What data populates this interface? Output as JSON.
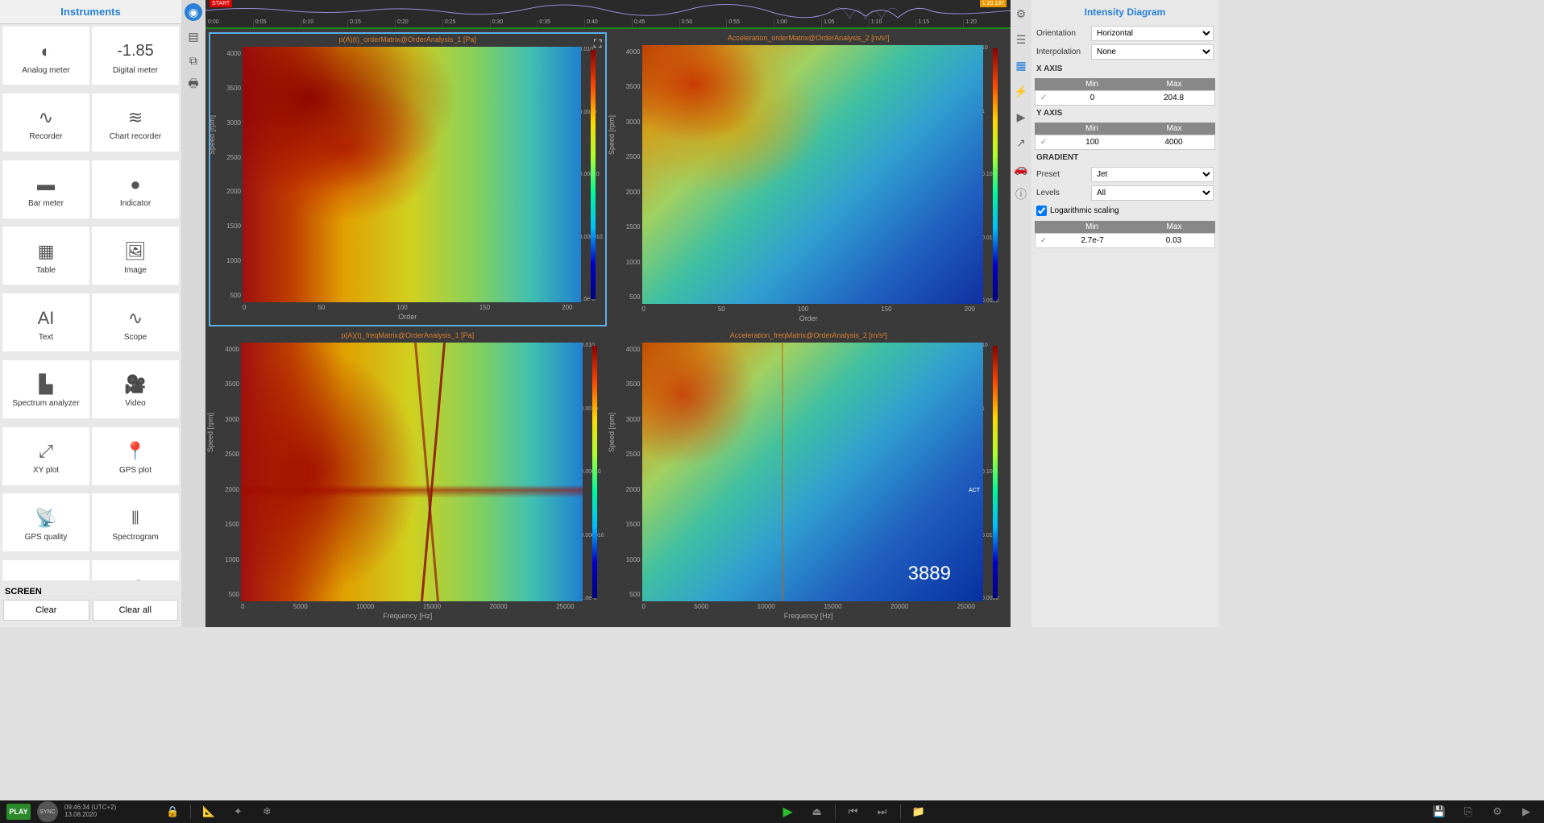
{
  "instruments": {
    "header": "Instruments",
    "tiles": [
      {
        "label": "Analog meter",
        "icon": "gauge"
      },
      {
        "label": "Digital meter",
        "value": "-1.85"
      },
      {
        "label": "Recorder",
        "icon": "wave"
      },
      {
        "label": "Chart recorder",
        "icon": "chartrec"
      },
      {
        "label": "Bar meter",
        "icon": "bar"
      },
      {
        "label": "Indicator",
        "icon": "dot"
      },
      {
        "label": "Table",
        "icon": "table"
      },
      {
        "label": "Image",
        "icon": "image"
      },
      {
        "label": "Text",
        "icon": "text"
      },
      {
        "label": "Scope",
        "icon": "scope"
      },
      {
        "label": "Spectrum analyzer",
        "icon": "spectrum"
      },
      {
        "label": "Video",
        "icon": "video"
      },
      {
        "label": "XY plot",
        "icon": "xy"
      },
      {
        "label": "GPS plot",
        "icon": "gps"
      },
      {
        "label": "GPS quality",
        "icon": "gpsq"
      },
      {
        "label": "Spectrogram",
        "icon": "spectro"
      },
      {
        "label": "",
        "icon": "grid3d"
      },
      {
        "label": "",
        "icon": "crane"
      }
    ]
  },
  "screen": {
    "label": "SCREEN",
    "clear": "Clear",
    "clearAll": "Clear all"
  },
  "timeline": {
    "start": "START",
    "end": "1:20.137",
    "ticks": [
      "0:00",
      "0:05",
      "0:10",
      "0:15",
      "0:20",
      "0:25",
      "0:30",
      "0:35",
      "0:40",
      "0:45",
      "0:50",
      "0:55",
      "1:00",
      "1:05",
      "1:10",
      "1:15",
      "1:20"
    ]
  },
  "charts": {
    "panels": [
      {
        "title": "p(A)(t)_orderMatrix@OrderAnalysis_1 [Pa]",
        "ylabel": "Speed [rpm]",
        "xlabel": "Order",
        "yticks": [
          "4000",
          "3500",
          "3000",
          "2500",
          "2000",
          "1500",
          "1000",
          "500"
        ],
        "xticks": [
          "0",
          "50",
          "100",
          "150",
          "200"
        ],
        "cbar": [
          "0.010",
          "0.0010",
          "0.00010",
          "0.000010",
          "1.0e-6"
        ],
        "selected": true
      },
      {
        "title": "Acceleration_orderMatrix@OrderAnalysis_2 [m/s²]",
        "ylabel": "Speed [rpm]",
        "xlabel": "Order",
        "yticks": [
          "4000",
          "3500",
          "3000",
          "2500",
          "2000",
          "1500",
          "1000",
          "500"
        ],
        "xticks": [
          "0",
          "50",
          "100",
          "150",
          "200"
        ],
        "cbar": [
          "10",
          "1",
          "0.10",
          "0.010",
          "0.0010"
        ]
      },
      {
        "title": "p(A)(t)_freqMatrix@OrderAnalysis_1 [Pa]",
        "ylabel": "Speed [rpm]",
        "xlabel": "Frequency [Hz]",
        "yticks": [
          "4000",
          "3500",
          "3000",
          "2500",
          "2000",
          "1500",
          "1000",
          "500"
        ],
        "xticks": [
          "0",
          "5000",
          "10000",
          "15000",
          "20000",
          "25000"
        ],
        "cbar": [
          "0.010",
          "0.0010",
          "0.00010",
          "0.000010",
          "1.0e-6"
        ]
      },
      {
        "title": "Acceleration_freqMatrix@OrderAnalysis_2 [m/s²]",
        "ylabel": "Speed [rpm]",
        "xlabel": "Frequency [Hz]",
        "yticks": [
          "4000",
          "3500",
          "3000",
          "2500",
          "2000",
          "1500",
          "1000",
          "500"
        ],
        "xticks": [
          "0",
          "5000",
          "10000",
          "15000",
          "20000",
          "25000"
        ],
        "cbar": [
          "10",
          "1",
          "0.10",
          "0.010",
          "0.0010"
        ],
        "annotation": "3889",
        "act": "ACT"
      }
    ]
  },
  "props": {
    "header": "Intensity Diagram",
    "orientation": {
      "label": "Orientation",
      "value": "Horizontal"
    },
    "interpolation": {
      "label": "Interpolation",
      "value": "None"
    },
    "xaxis": {
      "label": "X AXIS",
      "min": "0",
      "max": "204.8"
    },
    "yaxis": {
      "label": "Y AXIS",
      "min": "100",
      "max": "4000"
    },
    "gradient": {
      "label": "GRADIENT"
    },
    "preset": {
      "label": "Preset",
      "value": "Jet"
    },
    "levels": {
      "label": "Levels",
      "value": "All"
    },
    "logscale": {
      "label": "Logarithmic scaling",
      "checked": true
    },
    "gradientRange": {
      "min": "2.7e-7",
      "max": "0.03"
    },
    "minLabel": "Min",
    "maxLabel": "Max"
  },
  "bottom": {
    "play": "PLAY",
    "sync": "SYNC",
    "time": "09:46:34 (UTC+2)",
    "date": "13.08.2020"
  }
}
